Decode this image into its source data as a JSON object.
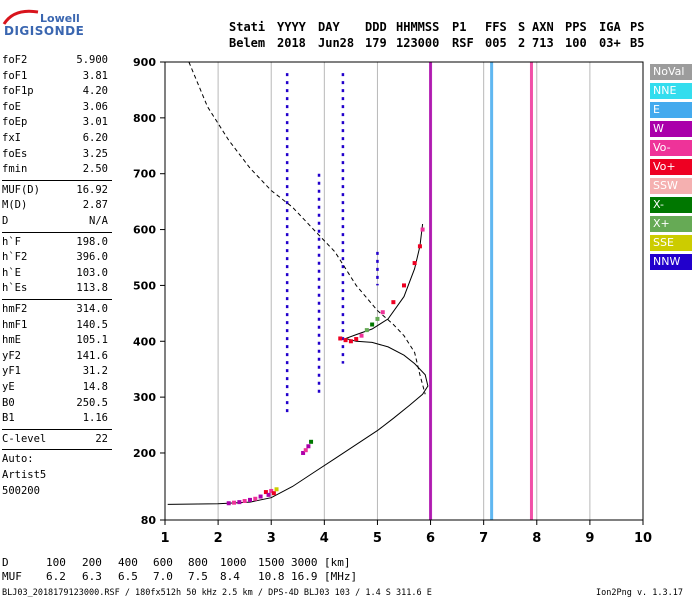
{
  "logo": {
    "line1": "Lowell",
    "line2": "DIGISONDE"
  },
  "header": {
    "labels": [
      "Stati",
      "YYYY",
      "DAY",
      "DDD",
      "HHMMSS",
      "P1",
      "FFS",
      "S",
      "AXN",
      "PPS",
      "IGA",
      "PS"
    ],
    "values": [
      "Belem",
      "2018",
      "Jun28",
      "179",
      "123000",
      "RSF",
      "005",
      "2",
      "713",
      "100",
      "03+",
      "B5"
    ]
  },
  "params": {
    "group1": [
      {
        "k": "foF2",
        "v": "5.900"
      },
      {
        "k": "foF1",
        "v": "3.81"
      },
      {
        "k": "foF1p",
        "v": "4.20"
      },
      {
        "k": "foE",
        "v": "3.06"
      },
      {
        "k": "foEp",
        "v": "3.01"
      },
      {
        "k": "fxI",
        "v": "6.20"
      },
      {
        "k": "foEs",
        "v": "3.25"
      },
      {
        "k": "fmin",
        "v": "2.50"
      }
    ],
    "group2": [
      {
        "k": "MUF(D)",
        "v": "16.92"
      },
      {
        "k": "M(D)",
        "v": "2.87"
      },
      {
        "k": "D",
        "v": "N/A"
      }
    ],
    "group3": [
      {
        "k": "h`F",
        "v": "198.0"
      },
      {
        "k": "h`F2",
        "v": "396.0"
      },
      {
        "k": "h`E",
        "v": "103.0"
      },
      {
        "k": "h`Es",
        "v": "113.8"
      }
    ],
    "group4": [
      {
        "k": "hmF2",
        "v": "314.0"
      },
      {
        "k": "hmF1",
        "v": "140.5"
      },
      {
        "k": "hmE",
        "v": "105.1"
      },
      {
        "k": "yF2",
        "v": "141.6"
      },
      {
        "k": "yF1",
        "v": "31.2"
      },
      {
        "k": "yE",
        "v": "14.8"
      },
      {
        "k": "B0",
        "v": "250.5"
      },
      {
        "k": "B1",
        "v": "1.16"
      }
    ],
    "group5": [
      {
        "k": "C-level",
        "v": "22"
      }
    ],
    "group6": [
      "Auto:",
      "Artist5",
      "500200"
    ]
  },
  "legend": [
    {
      "name": "NoVal",
      "color": "#9c9c9c"
    },
    {
      "name": "NNE",
      "color": "#33ddee"
    },
    {
      "name": "E",
      "color": "#44aaee"
    },
    {
      "name": "W",
      "color": "#aa00aa"
    },
    {
      "name": "Vo-",
      "color": "#ee3399"
    },
    {
      "name": "Vo+",
      "color": "#ee0022"
    },
    {
      "name": "SSW",
      "color": "#f5b0b0"
    },
    {
      "name": "X-",
      "color": "#007700"
    },
    {
      "name": "X+",
      "color": "#66aa55"
    },
    {
      "name": "SSE",
      "color": "#cccc00"
    },
    {
      "name": "NNW",
      "color": "#2200cc"
    }
  ],
  "bottom": {
    "d_label": "D",
    "d_values": [
      "100",
      "200",
      "400",
      "600",
      "800",
      "1000",
      "1500",
      "3000",
      "[km]"
    ],
    "muf_label": "MUF",
    "muf_values": [
      "6.2",
      "6.3",
      "6.5",
      "7.0",
      "7.5",
      "8.4",
      "10.8",
      "16.9",
      "[MHz]"
    ]
  },
  "footer": {
    "left": "BLJ03_2018179123000.RSF / 180fx512h 50 kHz 2.5 km / DPS-4D BLJ03 103 / 1.4 S 311.6 E",
    "right": "Ion2Png v. 1.3.17"
  },
  "chart_data": {
    "type": "scatter",
    "xlabel": "",
    "ylabel": "",
    "xlim": [
      1,
      10
    ],
    "ylim": [
      80,
      900
    ],
    "x_ticks": [
      "1",
      "2",
      "3",
      "4",
      "5",
      "6",
      "7",
      "8",
      "9",
      "10"
    ],
    "y_ticks": [
      "80",
      "200",
      "300",
      "400",
      "500",
      "600",
      "700",
      "800",
      "900"
    ],
    "grid_x": [
      2,
      3,
      4,
      5,
      6,
      7,
      8,
      9
    ],
    "vertical_lines": [
      {
        "x": 6.0,
        "color": "#aa00aa",
        "from": 80,
        "to": 900
      },
      {
        "x": 7.15,
        "color": "#44aaee",
        "from": 80,
        "to": 900
      },
      {
        "x": 7.9,
        "color": "#ee3399",
        "from": 80,
        "to": 900
      }
    ],
    "trace_points": [
      {
        "x": 2.9,
        "y": 130,
        "c": "#ee0022"
      },
      {
        "x": 2.95,
        "y": 125,
        "c": "#aa00aa"
      },
      {
        "x": 3.0,
        "y": 132,
        "c": "#ee3399"
      },
      {
        "x": 3.05,
        "y": 128,
        "c": "#ee0022"
      },
      {
        "x": 2.8,
        "y": 122,
        "c": "#aa00aa"
      },
      {
        "x": 2.7,
        "y": 118,
        "c": "#ee3399"
      },
      {
        "x": 2.6,
        "y": 116,
        "c": "#aa00aa"
      },
      {
        "x": 2.5,
        "y": 114,
        "c": "#ee3399"
      },
      {
        "x": 2.4,
        "y": 112,
        "c": "#aa00aa"
      },
      {
        "x": 2.3,
        "y": 111,
        "c": "#ee3399"
      },
      {
        "x": 2.2,
        "y": 110,
        "c": "#aa00aa"
      },
      {
        "x": 3.1,
        "y": 135,
        "c": "#cccc00"
      },
      {
        "x": 3.6,
        "y": 200,
        "c": "#aa00aa"
      },
      {
        "x": 3.65,
        "y": 205,
        "c": "#ee3399"
      },
      {
        "x": 3.7,
        "y": 212,
        "c": "#aa00aa"
      },
      {
        "x": 3.75,
        "y": 220,
        "c": "#007700"
      },
      {
        "x": 4.3,
        "y": 405,
        "c": "#ee0022"
      },
      {
        "x": 4.4,
        "y": 402,
        "c": "#ee0022"
      },
      {
        "x": 4.5,
        "y": 400,
        "c": "#ee0022"
      },
      {
        "x": 4.6,
        "y": 404,
        "c": "#ee0022"
      },
      {
        "x": 4.7,
        "y": 410,
        "c": "#ee3399"
      },
      {
        "x": 4.8,
        "y": 420,
        "c": "#66aa55"
      },
      {
        "x": 4.9,
        "y": 430,
        "c": "#007700"
      },
      {
        "x": 5.0,
        "y": 440,
        "c": "#66aa55"
      },
      {
        "x": 5.1,
        "y": 452,
        "c": "#ee3399"
      },
      {
        "x": 5.3,
        "y": 470,
        "c": "#ee0022"
      },
      {
        "x": 5.5,
        "y": 500,
        "c": "#ee0022"
      },
      {
        "x": 5.7,
        "y": 540,
        "c": "#ee0022"
      },
      {
        "x": 5.8,
        "y": 570,
        "c": "#ee0022"
      },
      {
        "x": 5.85,
        "y": 600,
        "c": "#ee3399"
      }
    ],
    "nnw_columns": [
      {
        "x": 3.3,
        "from": 270,
        "to": 880
      },
      {
        "x": 3.9,
        "from": 300,
        "to": 700
      },
      {
        "x": 4.35,
        "from": 360,
        "to": 880
      },
      {
        "x": 5.0,
        "from": 500,
        "to": 560
      }
    ],
    "curve_solid": [
      [
        1.05,
        108
      ],
      [
        2.0,
        109
      ],
      [
        2.6,
        112
      ],
      [
        3.0,
        120
      ],
      [
        3.4,
        140
      ],
      [
        3.8,
        165
      ],
      [
        4.2,
        190
      ],
      [
        4.6,
        215
      ],
      [
        5.0,
        240
      ],
      [
        5.3,
        262
      ],
      [
        5.6,
        285
      ],
      [
        5.85,
        305
      ],
      [
        5.95,
        320
      ],
      [
        5.9,
        340
      ],
      [
        5.7,
        360
      ],
      [
        5.5,
        375
      ],
      [
        5.2,
        390
      ],
      [
        4.9,
        398
      ],
      [
        4.6,
        400
      ],
      [
        4.4,
        405
      ],
      [
        4.6,
        412
      ],
      [
        4.9,
        422
      ],
      [
        5.2,
        440
      ],
      [
        5.5,
        480
      ],
      [
        5.7,
        530
      ],
      [
        5.8,
        570
      ],
      [
        5.85,
        610
      ]
    ],
    "curve_dashed": [
      [
        1.45,
        900
      ],
      [
        1.8,
        820
      ],
      [
        2.2,
        760
      ],
      [
        2.6,
        710
      ],
      [
        3.0,
        670
      ],
      [
        3.4,
        640
      ],
      [
        3.8,
        600
      ],
      [
        4.2,
        560
      ],
      [
        4.6,
        500
      ],
      [
        5.0,
        455
      ],
      [
        5.3,
        430
      ],
      [
        5.5,
        410
      ],
      [
        5.7,
        380
      ],
      [
        5.8,
        340
      ],
      [
        5.9,
        305
      ]
    ]
  }
}
